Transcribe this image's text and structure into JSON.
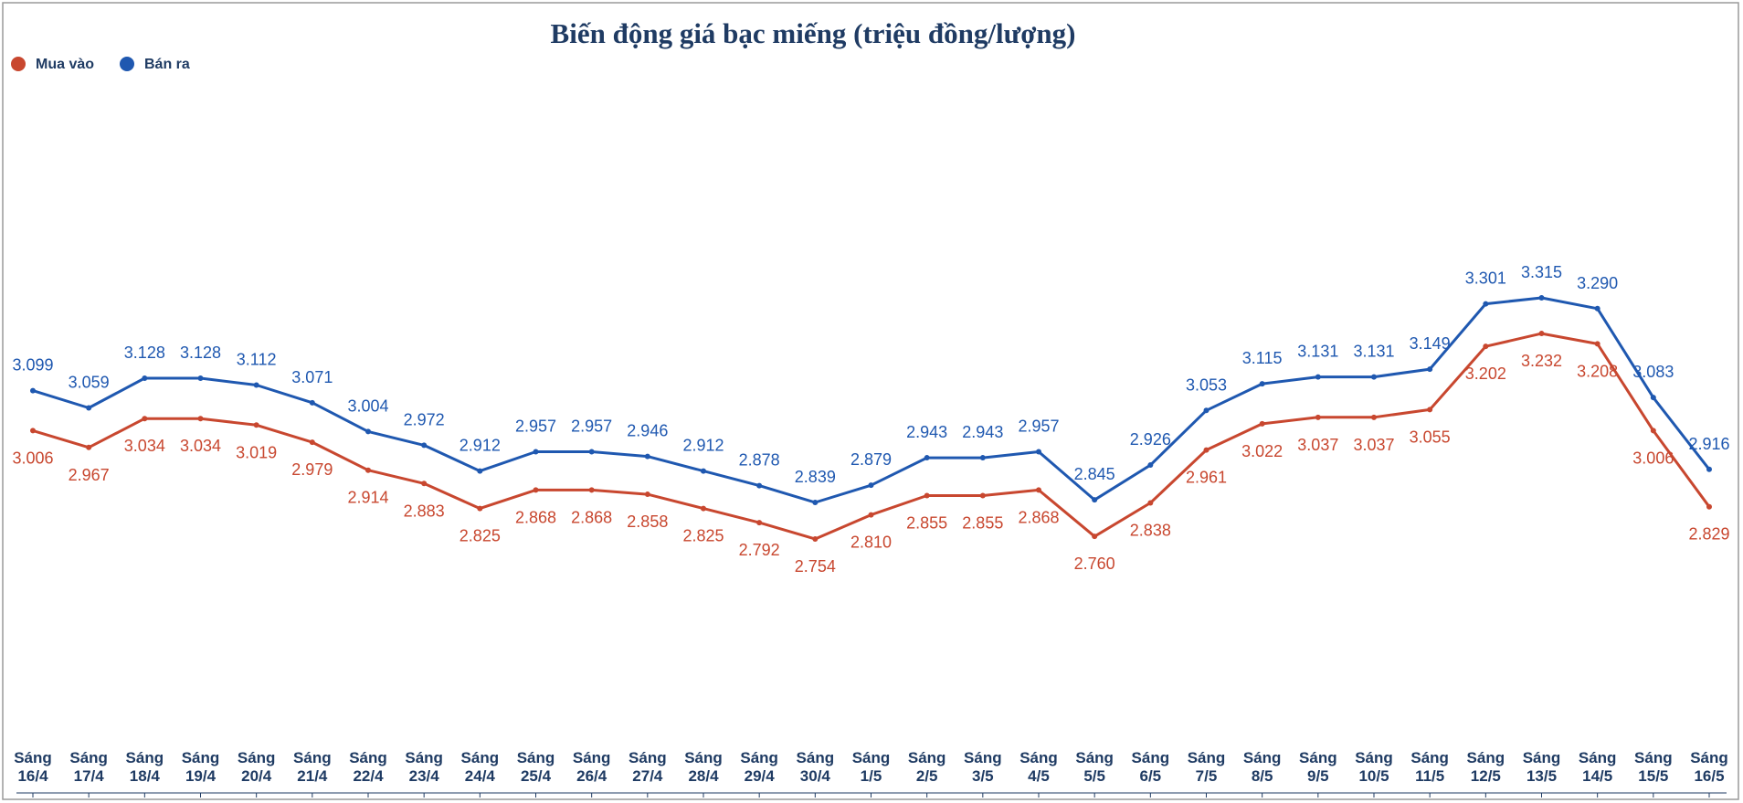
{
  "chart_data": {
    "type": "line",
    "title": "Biến động giá bạc miếng (triệu đồng/lượng)",
    "xlabel": "",
    "ylabel": "",
    "categories": [
      [
        "Sáng",
        "16/4"
      ],
      [
        "Sáng",
        "17/4"
      ],
      [
        "Sáng",
        "18/4"
      ],
      [
        "Sáng",
        "19/4"
      ],
      [
        "Sáng",
        "20/4"
      ],
      [
        "Sáng",
        "21/4"
      ],
      [
        "Sáng",
        "22/4"
      ],
      [
        "Sáng",
        "23/4"
      ],
      [
        "Sáng",
        "24/4"
      ],
      [
        "Sáng",
        "25/4"
      ],
      [
        "Sáng",
        "26/4"
      ],
      [
        "Sáng",
        "27/4"
      ],
      [
        "Sáng",
        "28/4"
      ],
      [
        "Sáng",
        "29/4"
      ],
      [
        "Sáng",
        "30/4"
      ],
      [
        "Sáng",
        "1/5"
      ],
      [
        "Sáng",
        "2/5"
      ],
      [
        "Sáng",
        "3/5"
      ],
      [
        "Sáng",
        "4/5"
      ],
      [
        "Sáng",
        "5/5"
      ],
      [
        "Sáng",
        "6/5"
      ],
      [
        "Sáng",
        "7/5"
      ],
      [
        "Sáng",
        "8/5"
      ],
      [
        "Sáng",
        "9/5"
      ],
      [
        "Sáng",
        "10/5"
      ],
      [
        "Sáng",
        "11/5"
      ],
      [
        "Sáng",
        "12/5"
      ],
      [
        "Sáng",
        "13/5"
      ],
      [
        "Sáng",
        "14/5"
      ],
      [
        "Sáng",
        "15/5"
      ],
      [
        "Sáng",
        "16/5"
      ]
    ],
    "series": [
      {
        "name": "Mua vào",
        "color": "#c8472f",
        "values": [
          3.006,
          2.967,
          3.034,
          3.034,
          3.019,
          2.979,
          2.914,
          2.883,
          2.825,
          2.868,
          2.868,
          2.858,
          2.825,
          2.792,
          2.754,
          2.81,
          2.855,
          2.855,
          2.868,
          2.76,
          2.838,
          2.961,
          3.022,
          3.037,
          3.037,
          3.055,
          3.202,
          3.232,
          3.208,
          3.006,
          2.829
        ],
        "labels": [
          "3.006",
          "2.967",
          "3.034",
          "3.034",
          "3.019",
          "2.979",
          "2.914",
          "2.883",
          "2.825",
          "2.868",
          "2.868",
          "2.858",
          "2.825",
          "2.792",
          "2.754",
          "2.810",
          "2.855",
          "2.855",
          "2.868",
          "2.760",
          "2.838",
          "2.961",
          "3.022",
          "3.037",
          "3.037",
          "3.055",
          "3.202",
          "3.232",
          "3.208",
          "3.006",
          "2.829"
        ]
      },
      {
        "name": "Bán ra",
        "color": "#1f58b0",
        "values": [
          3.099,
          3.059,
          3.128,
          3.128,
          3.112,
          3.071,
          3.004,
          2.972,
          2.912,
          2.957,
          2.957,
          2.946,
          2.912,
          2.878,
          2.839,
          2.879,
          2.943,
          2.943,
          2.957,
          2.845,
          2.926,
          3.053,
          3.115,
          3.131,
          3.131,
          3.149,
          3.301,
          3.315,
          3.29,
          3.083,
          2.916
        ],
        "labels": [
          "3.099",
          "3.059",
          "3.128",
          "3.128",
          "3.112",
          "3.071",
          "3.004",
          "2.972",
          "2.912",
          "2.957",
          "2.957",
          "2.946",
          "2.912",
          "2.878",
          "2.839",
          "2.879",
          "2.943",
          "2.943",
          "2.957",
          "2.845",
          "2.926",
          "3.053",
          "3.115",
          "3.131",
          "3.131",
          "3.149",
          "3.301",
          "3.315",
          "3.290",
          "3.083",
          "2.916"
        ]
      }
    ],
    "legend": {
      "placement": "top-left"
    },
    "grid": false
  },
  "theme": {
    "title_color": "#1f3b63",
    "axis_text_color": "#1f3b63",
    "frame_color": "#9a9a9a"
  }
}
